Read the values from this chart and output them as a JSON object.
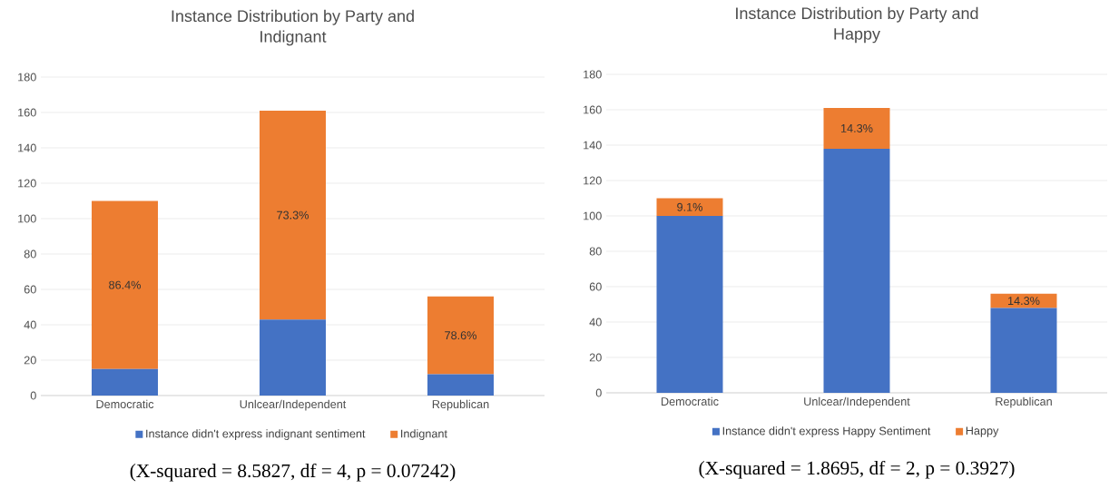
{
  "chart_data": [
    {
      "type": "bar",
      "title": "Instance Distribution by Party and\nIndignant",
      "categories": [
        "Democratic",
        "Unlcear/Independent",
        "Republican"
      ],
      "stacked": true,
      "ylim": [
        0,
        180
      ],
      "yticks": [
        0,
        20,
        40,
        60,
        80,
        100,
        120,
        140,
        160,
        180
      ],
      "grid": "y",
      "legend": "bottom",
      "series": [
        {
          "name": "Instance didn't express indignant sentiment",
          "color": "#4472c4",
          "values": [
            15,
            43,
            12
          ]
        },
        {
          "name": "Indignant",
          "color": "#ed7d31",
          "values": [
            95,
            118,
            44
          ]
        }
      ],
      "annotations": [
        "86.4%",
        "73.3%",
        "78.6%",
        "(X-squared = 8.5827, df = 4, p = 0.07242)"
      ]
    },
    {
      "type": "bar",
      "title": "Instance Distribution by Party and\nHappy",
      "categories": [
        "Democratic",
        "Unlcear/Independent",
        "Republican"
      ],
      "stacked": true,
      "ylim": [
        0,
        180
      ],
      "yticks": [
        0,
        20,
        40,
        60,
        80,
        100,
        120,
        140,
        160,
        180
      ],
      "grid": "y",
      "legend": "bottom",
      "series": [
        {
          "name": "Instance didn't express Happy Sentiment",
          "color": "#4472c4",
          "values": [
            100,
            138,
            48
          ]
        },
        {
          "name": "Happy",
          "color": "#ed7d31",
          "values": [
            10,
            23,
            8
          ]
        }
      ],
      "annotations": [
        "9.1%",
        "14.3%",
        "14.3%",
        "(X-squared = 1.8695, df = 2, p = 0.3927)"
      ]
    }
  ]
}
